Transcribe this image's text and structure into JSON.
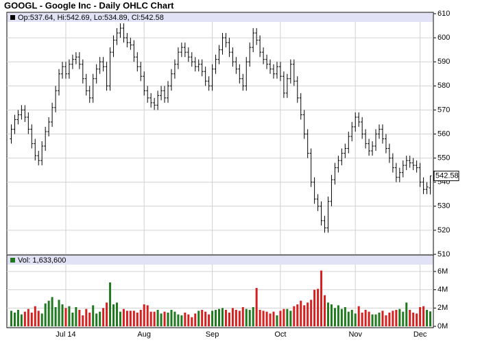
{
  "chart_data": {
    "type": "ohlc",
    "title": "GOOGL - Google Inc - Daily OHLC Chart",
    "legend_text": "Op:537.64, Hi:542.69, Lo:534.89, Cl:542.58",
    "volume_legend_text": "Vol: 1,633,600",
    "last_price_label": "542.58",
    "categories": [
      null,
      null,
      null,
      null,
      null,
      null,
      null,
      null,
      null,
      null,
      null,
      null,
      null,
      null,
      null,
      null,
      "Jul 14",
      null,
      null,
      null,
      null,
      null,
      null,
      null,
      null,
      null,
      null,
      null,
      null,
      null,
      null,
      null,
      null,
      null,
      null,
      null,
      null,
      null,
      null,
      "Aug",
      null,
      null,
      null,
      null,
      null,
      null,
      null,
      null,
      null,
      null,
      null,
      null,
      null,
      null,
      null,
      null,
      null,
      null,
      null,
      "Sep",
      null,
      null,
      null,
      null,
      null,
      null,
      null,
      null,
      null,
      null,
      null,
      null,
      null,
      null,
      null,
      null,
      null,
      null,
      null,
      "Oct",
      null,
      null,
      null,
      null,
      null,
      null,
      null,
      null,
      null,
      null,
      null,
      null,
      null,
      null,
      null,
      null,
      null,
      null,
      null,
      null,
      null,
      "Nov",
      null,
      null,
      null,
      null,
      null,
      null,
      null,
      null,
      null,
      null,
      null,
      null,
      null,
      null,
      null,
      null,
      null,
      null,
      "Dec",
      null,
      null,
      null
    ],
    "open": [
      558,
      562,
      566,
      568,
      570,
      567,
      562,
      556,
      551,
      549,
      555,
      561,
      565,
      571,
      578,
      585,
      588,
      585,
      589,
      591,
      592,
      589,
      583,
      578,
      575,
      583,
      587,
      590,
      588,
      580,
      594,
      599,
      602,
      604,
      600,
      598,
      597,
      592,
      588,
      584,
      578,
      575,
      573,
      572,
      576,
      578,
      575,
      580,
      585,
      589,
      594,
      596,
      594,
      592,
      590,
      588,
      589,
      586,
      582,
      580,
      587,
      591,
      595,
      600,
      598,
      594,
      590,
      587,
      583,
      580,
      590,
      596,
      602,
      599,
      594,
      591,
      589,
      587,
      585,
      588,
      584,
      577,
      583,
      589,
      582,
      575,
      568,
      560,
      552,
      540,
      533,
      530,
      524,
      521,
      532,
      541,
      546,
      549,
      552,
      554,
      559,
      563,
      567,
      565,
      560,
      556,
      553,
      555,
      560,
      562,
      558,
      554,
      550,
      546,
      542,
      544,
      547,
      549,
      548,
      547,
      546,
      540,
      537,
      537.64
    ],
    "high": [
      564,
      568,
      570,
      572,
      572,
      569,
      564,
      558,
      553,
      557,
      563,
      567,
      573,
      580,
      587,
      590,
      590,
      591,
      593,
      594,
      594,
      591,
      585,
      580,
      585,
      589,
      592,
      592,
      590,
      596,
      601,
      604,
      606,
      606,
      602,
      600,
      599,
      594,
      590,
      586,
      580,
      577,
      575,
      578,
      580,
      580,
      582,
      587,
      591,
      596,
      598,
      598,
      596,
      594,
      592,
      591,
      591,
      588,
      584,
      589,
      593,
      597,
      602,
      602,
      600,
      596,
      592,
      589,
      585,
      592,
      598,
      604,
      604,
      601,
      596,
      593,
      591,
      589,
      590,
      590,
      586,
      585,
      591,
      591,
      584,
      577,
      570,
      562,
      554,
      542,
      535,
      532,
      526,
      534,
      543,
      548,
      551,
      554,
      556,
      561,
      565,
      569,
      569,
      567,
      562,
      558,
      557,
      562,
      564,
      564,
      560,
      556,
      552,
      548,
      546,
      549,
      551,
      551,
      550,
      549,
      548,
      542,
      540,
      542.69
    ],
    "low": [
      556,
      560,
      564,
      566,
      565,
      560,
      554,
      549,
      547,
      547,
      553,
      559,
      563,
      569,
      576,
      583,
      583,
      583,
      587,
      589,
      587,
      581,
      576,
      573,
      573,
      581,
      585,
      586,
      578,
      578,
      592,
      597,
      600,
      598,
      596,
      595,
      590,
      586,
      582,
      576,
      573,
      571,
      570,
      570,
      574,
      573,
      573,
      578,
      583,
      587,
      592,
      592,
      590,
      588,
      586,
      586,
      584,
      580,
      578,
      578,
      585,
      589,
      593,
      596,
      592,
      588,
      585,
      581,
      578,
      578,
      588,
      594,
      597,
      592,
      589,
      587,
      585,
      583,
      583,
      582,
      575,
      575,
      581,
      580,
      573,
      566,
      558,
      550,
      538,
      531,
      528,
      522,
      519,
      519,
      530,
      539,
      544,
      547,
      550,
      552,
      557,
      561,
      563,
      558,
      554,
      551,
      551,
      553,
      558,
      556,
      552,
      548,
      544,
      540,
      540,
      542,
      545,
      546,
      545,
      544,
      538,
      535,
      535,
      534.89
    ],
    "close": [
      562,
      566,
      568,
      570,
      567,
      562,
      556,
      551,
      549,
      555,
      561,
      565,
      571,
      578,
      585,
      588,
      585,
      589,
      591,
      592,
      589,
      583,
      578,
      575,
      583,
      587,
      590,
      588,
      580,
      594,
      599,
      602,
      604,
      600,
      598,
      597,
      592,
      588,
      584,
      578,
      575,
      573,
      572,
      576,
      578,
      575,
      580,
      585,
      589,
      594,
      596,
      594,
      592,
      590,
      588,
      589,
      586,
      582,
      580,
      587,
      591,
      595,
      600,
      598,
      594,
      590,
      587,
      583,
      580,
      590,
      596,
      602,
      599,
      594,
      591,
      589,
      587,
      585,
      588,
      584,
      577,
      583,
      589,
      582,
      575,
      568,
      560,
      552,
      540,
      533,
      530,
      524,
      521,
      532,
      541,
      546,
      549,
      552,
      554,
      559,
      563,
      567,
      565,
      560,
      556,
      553,
      555,
      560,
      562,
      558,
      554,
      550,
      546,
      542,
      544,
      547,
      549,
      548,
      547,
      546,
      540,
      537,
      538,
      542.58
    ],
    "volume": [
      1.7,
      1.5,
      1.8,
      1.3,
      1.6,
      1.9,
      1.5,
      2.2,
      1.7,
      1.4,
      2.5,
      2.8,
      3.2,
      2.1,
      2.9,
      2.4,
      2.0,
      2.2,
      1.5,
      2.1,
      1.8,
      1.2,
      1.9,
      1.5,
      2.3,
      1.4,
      1.6,
      2.0,
      2.6,
      4.8,
      2.4,
      2.6,
      1.6,
      1.9,
      1.7,
      1.7,
      1.7,
      1.5,
      1.8,
      2.4,
      2.3,
      1.6,
      1.6,
      1.8,
      1.4,
      1.6,
      1.5,
      1.8,
      1.6,
      1.3,
      1.2,
      1.5,
      1.3,
      1.0,
      1.4,
      1.7,
      1.8,
      1.6,
      1.3,
      1.7,
      1.8,
      1.9,
      2.0,
      1.8,
      1.5,
      2.0,
      1.8,
      1.7,
      2.1,
      1.9,
      1.8,
      2.1,
      4.2,
      1.8,
      1.7,
      1.6,
      1.4,
      1.6,
      1.2,
      1.7,
      1.9,
      1.9,
      1.7,
      2.2,
      2.4,
      2.8,
      2.3,
      2.6,
      2.9,
      4.0,
      4.1,
      6.1,
      3.4,
      2.6,
      2.4,
      2.0,
      2.3,
      1.9,
      2.1,
      1.6,
      1.8,
      1.4,
      2.2,
      1.5,
      1.8,
      1.6,
      1.3,
      1.3,
      1.5,
      1.7,
      1.2,
      1.5,
      1.7,
      1.8,
      1.9,
      1.6,
      2.6,
      1.8,
      1.5,
      1.4,
      2.1,
      2.2,
      1.8,
      1.6336
    ],
    "ylim": [
      510,
      610
    ],
    "yticks": [
      510,
      520,
      530,
      540,
      550,
      560,
      570,
      580,
      590,
      600,
      610
    ],
    "y2lim": [
      0,
      7.8
    ],
    "y2ticks": [
      {
        "value": 0,
        "label": "0M"
      },
      {
        "value": 2,
        "label": "2M"
      },
      {
        "value": 4,
        "label": "4M"
      },
      {
        "value": 6,
        "label": "6M"
      }
    ],
    "grid": true,
    "up_color": "#1f7a1f",
    "down_color": "#d62020",
    "bar_color": "#000000"
  }
}
